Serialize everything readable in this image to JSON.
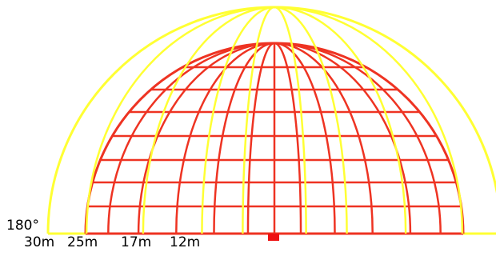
{
  "colors": {
    "background": "#ffffff",
    "outer_arcs": "#ffff33",
    "inner_grid": "#ee3322",
    "marker": "#ee1111",
    "labels": "#000000"
  },
  "labels": {
    "angle": "180°",
    "ranges": [
      "30m",
      "25m",
      "17m",
      "12m"
    ]
  },
  "diagram": {
    "description_elements": {
      "outer_hemisphere": "yellow",
      "inner_hemisphere": "red",
      "base_marker": "red-square"
    }
  }
}
